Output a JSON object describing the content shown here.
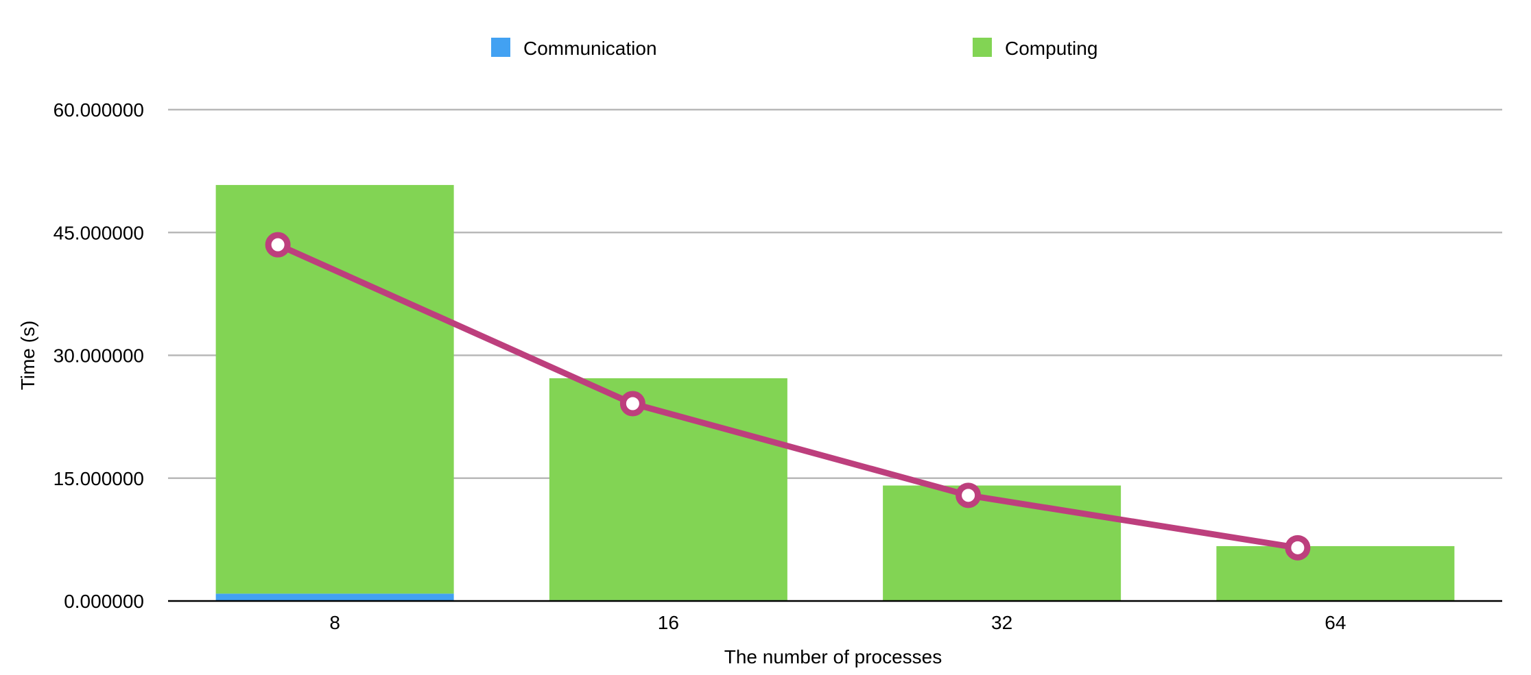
{
  "chart_data": {
    "type": "bar",
    "stacked": true,
    "categories": [
      "8",
      "16",
      "32",
      "64"
    ],
    "xlabel": "The number of processes",
    "ylabel": "Time (s)",
    "ylim": [
      0,
      60
    ],
    "yticks": [
      0,
      15,
      30,
      45,
      60
    ],
    "ytick_labels": [
      "0.000000",
      "15.000000",
      "30.000000",
      "45.000000",
      "60.000000"
    ],
    "grid": true,
    "legend_position": "top",
    "series": [
      {
        "name": "Communication",
        "kind": "bar",
        "color": "#42a1f2",
        "values": [
          0.9,
          0.1,
          0.05,
          0.05
        ]
      },
      {
        "name": "Computing",
        "kind": "bar",
        "color": "#82d454",
        "values": [
          49.9,
          27.1,
          14.05,
          6.65
        ]
      },
      {
        "kind": "line",
        "color": "#bd3f7d",
        "marker": "hollow-circle",
        "values": [
          43.5,
          24.1,
          12.9,
          6.5
        ]
      }
    ]
  }
}
